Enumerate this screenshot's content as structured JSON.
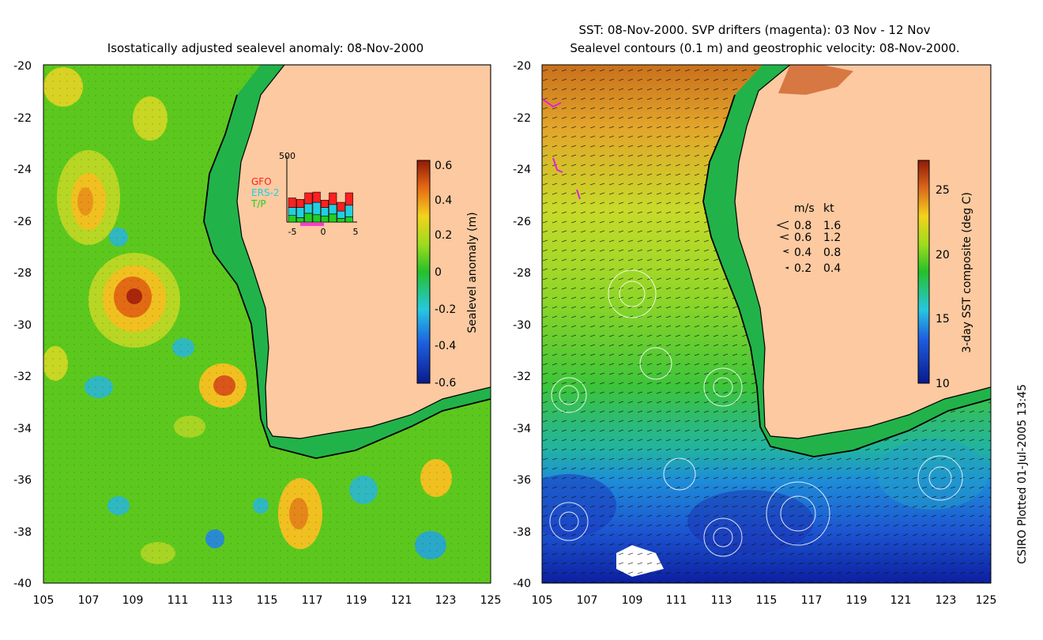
{
  "left_panel": {
    "title": "Isostatically adjusted sealevel anomaly: 08-Nov-2000",
    "colorbar": {
      "label": "Sealevel anomaly (m)",
      "ticks": [
        "0.6",
        "0.4",
        "0.2",
        "0",
        "-0.2",
        "-0.4",
        "-0.6"
      ]
    },
    "inset": {
      "ymax_label": "500",
      "x_ticks": [
        "-5",
        "0",
        "5"
      ],
      "legend": [
        {
          "label": "GFO",
          "color": "#ff2020"
        },
        {
          "label": "ERS-2",
          "color": "#20d0e0"
        },
        {
          "label": "T/P",
          "color": "#20d020"
        }
      ],
      "bars": [
        {
          "tp": 90,
          "ers": 110,
          "gfo": 130
        },
        {
          "tp": 60,
          "ers": 140,
          "gfo": 110
        },
        {
          "tp": 120,
          "ers": 130,
          "gfo": 150
        },
        {
          "tp": 100,
          "ers": 170,
          "gfo": 140
        },
        {
          "tp": 80,
          "ers": 120,
          "gfo": 100
        },
        {
          "tp": 110,
          "ers": 130,
          "gfo": 160
        },
        {
          "tp": 50,
          "ers": 100,
          "gfo": 120
        },
        {
          "tp": 70,
          "ers": 160,
          "gfo": 170
        }
      ]
    }
  },
  "right_panel": {
    "title_line1": "SST: 08-Nov-2000. SVP drifters (magenta): 03 Nov - 12 Nov",
    "title_line2": "Sealevel contours (0.1 m) and geostrophic velocity: 08-Nov-2000.",
    "colorbar": {
      "label": "3-day SST composite (deg C)",
      "ticks": [
        "25",
        "20",
        "15",
        "10"
      ]
    },
    "velocity_legend": {
      "header_ms": "m/s",
      "header_kt": "kt",
      "rows": [
        {
          "ms": "0.8",
          "kt": "1.6"
        },
        {
          "ms": "0.6",
          "kt": "1.2"
        },
        {
          "ms": "0.4",
          "kt": "0.8"
        },
        {
          "ms": "0.2",
          "kt": "0.4"
        }
      ]
    }
  },
  "axes": {
    "y_ticks": [
      "-20",
      "-22",
      "-24",
      "-26",
      "-28",
      "-30",
      "-32",
      "-34",
      "-36",
      "-38",
      "-40"
    ],
    "x_ticks": [
      "105",
      "107",
      "109",
      "111",
      "113",
      "115",
      "117",
      "119",
      "121",
      "123",
      "125"
    ]
  },
  "footer": {
    "credit": "CSIRO Plotted 01-Jul-2005 13:45"
  },
  "colors": {
    "land": "#fcc9a0",
    "coast": "#000000",
    "shelf_green": "#22b24a"
  }
}
